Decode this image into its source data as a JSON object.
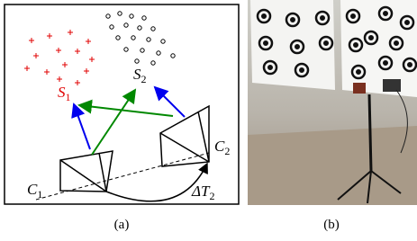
{
  "panel_a": {
    "sets": [
      {
        "label": "S",
        "sub": "1"
      },
      {
        "label": "S",
        "sub": "2"
      }
    ],
    "cameras": [
      {
        "label": "C",
        "sub": "1"
      },
      {
        "label": "C",
        "sub": "2"
      }
    ],
    "transform": {
      "label": "ΔT",
      "sub": "2"
    }
  },
  "captions": [
    "(a)",
    "(b)"
  ]
}
